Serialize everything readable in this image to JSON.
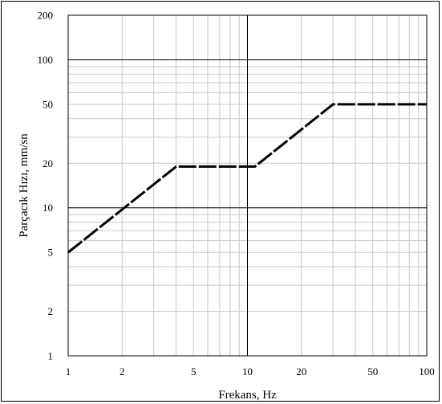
{
  "chart_data": {
    "type": "line",
    "title": "",
    "xlabel": "Frekans, Hz",
    "ylabel": "Parçacık Hızı, mm/sn",
    "x_scale": "log",
    "y_scale": "log",
    "xlim": [
      1,
      100
    ],
    "ylim": [
      1,
      200
    ],
    "x_ticks": [
      1,
      2,
      5,
      10,
      20,
      50,
      100
    ],
    "x_tick_labels": [
      "1",
      "2",
      "5",
      "10",
      "20",
      "50",
      "100"
    ],
    "y_ticks": [
      1,
      2,
      5,
      10,
      20,
      50,
      100,
      200
    ],
    "y_tick_labels": [
      "1",
      "2",
      "5",
      "10",
      "20",
      "50",
      "100",
      "200"
    ],
    "grid": true,
    "series": [
      {
        "x": [
          1,
          4,
          11,
          30,
          100
        ],
        "y": [
          5,
          19,
          19,
          50,
          50
        ],
        "color": "#000000",
        "dashed": true
      }
    ]
  }
}
